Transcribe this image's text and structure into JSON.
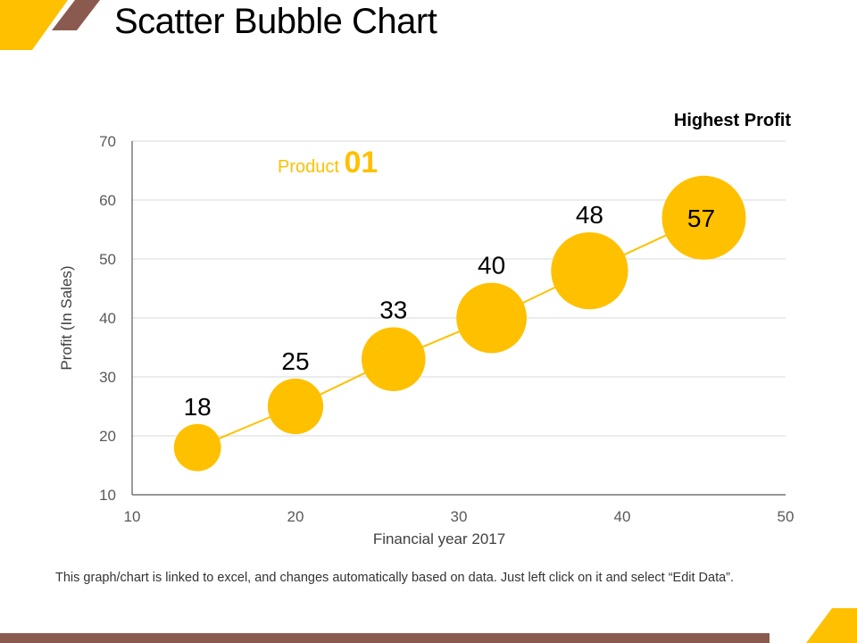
{
  "slide": {
    "title": "Scatter Bubble Chart",
    "footer_note": "This graph/chart is linked to excel, and changes automatically based on data. Just left click on it and select “Edit Data”."
  },
  "colors": {
    "accent": "#FFC000",
    "brown": "#8B5A4E",
    "grid": "#D9D9D9",
    "axis": "#595959"
  },
  "chart_data": {
    "type": "scatter",
    "subtype": "bubble",
    "title": "",
    "series": [
      {
        "name": "Product 01",
        "points": [
          {
            "x": 14,
            "y": 18,
            "size": 18,
            "label": "18"
          },
          {
            "x": 20,
            "y": 25,
            "size": 25,
            "label": "25"
          },
          {
            "x": 26,
            "y": 33,
            "size": 33,
            "label": "33"
          },
          {
            "x": 32,
            "y": 40,
            "size": 40,
            "label": "40"
          },
          {
            "x": 38,
            "y": 48,
            "size": 48,
            "label": "48"
          },
          {
            "x": 45,
            "y": 57,
            "size": 57,
            "label": "57"
          }
        ]
      }
    ],
    "xlabel": "Financial year  2017",
    "ylabel": "Profit  (In Sales)",
    "xlim": [
      10,
      50
    ],
    "ylim": [
      10,
      70
    ],
    "xticks": [
      10,
      20,
      30,
      40,
      50
    ],
    "yticks": [
      10,
      20,
      30,
      40,
      50,
      60,
      70
    ],
    "grid": true,
    "legend": {
      "prefix": "Product ",
      "number": "01",
      "placement": "top-left"
    },
    "annotation": "Highest Profit"
  }
}
